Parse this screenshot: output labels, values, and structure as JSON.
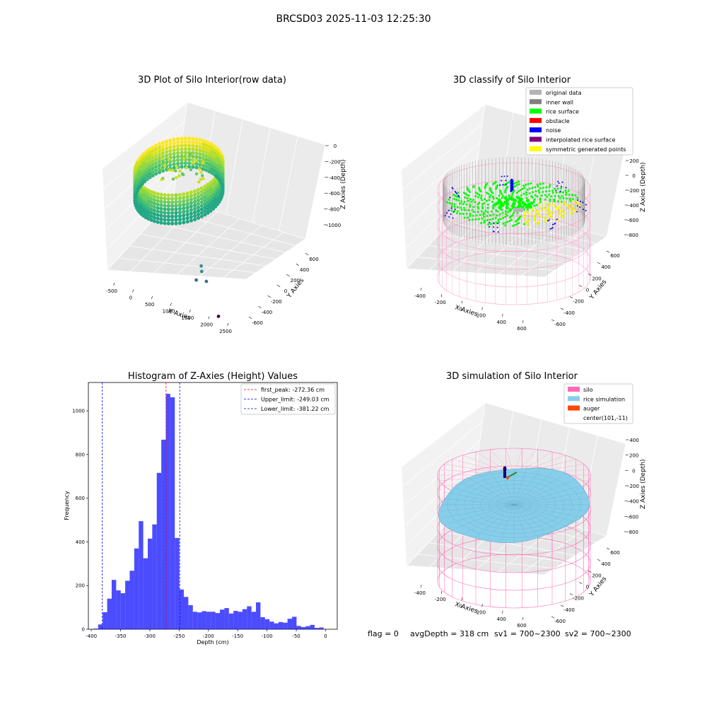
{
  "suptitle": "BRCSD03 2025-11-03 12:25:30",
  "footer": {
    "flag": "flag = 0",
    "avg_depth": "avgDepth = 318 cm",
    "sv1": "sv1 = 700~2300",
    "sv2": "sv2 = 700~2300"
  },
  "chart_data": [
    {
      "id": "raw",
      "type": "scatter",
      "title": "3D Plot of Silo Interior(row data)",
      "xlabel": "X Axies",
      "ylabel": "Y Axies",
      "zlabel": "Z Axies (Depth)",
      "xticks": [
        "-500",
        "0",
        "500",
        "1000",
        "1500",
        "2000",
        "2500"
      ],
      "yticks": [
        "-600",
        "-400",
        "-200",
        "0",
        "200",
        "400",
        "600"
      ],
      "zticks": [
        "0",
        "-200",
        "-400",
        "-600",
        "-800",
        "-1000"
      ],
      "colormap": "viridis",
      "outlier_points": [
        {
          "x": 1000,
          "y": 150,
          "z": -1000
        },
        {
          "x": 1100,
          "y": 60,
          "z": -1000
        },
        {
          "x": 1150,
          "y": -120,
          "z": -1000
        },
        {
          "x": 1350,
          "y": -80,
          "z": -1000
        },
        {
          "x": 2150,
          "y": -600,
          "z": -1000
        }
      ]
    },
    {
      "id": "classify",
      "type": "scatter",
      "title": "3D classify of Silo Interior",
      "xlabel": "X Axies",
      "ylabel": "Y Axies",
      "zlabel": "Z Axies (Depth)",
      "xticks": [
        "-400",
        "-200",
        "0",
        "200",
        "400",
        "600"
      ],
      "yticks": [
        "-600",
        "-400",
        "-200",
        "0",
        "200",
        "400",
        "600"
      ],
      "zticks": [
        "200",
        "0",
        "-200",
        "-400",
        "-600",
        "-800"
      ],
      "legend": [
        {
          "label": "original data",
          "color": "#b4b4b4"
        },
        {
          "label": "inner wall",
          "color": "#808080"
        },
        {
          "label": "rice surface",
          "color": "#00ff00"
        },
        {
          "label": "obstacle",
          "color": "#ff0000"
        },
        {
          "label": "noise",
          "color": "#0000ff"
        },
        {
          "label": "interpolated rice surface",
          "color": "#800080"
        },
        {
          "label": "symmetric generated points",
          "color": "#ffff00"
        }
      ],
      "legend_loc": "upper right"
    },
    {
      "id": "histogram",
      "type": "bar",
      "title": "Histogram of Z-Axies (Height) Values",
      "xlabel": "Depth (cm)",
      "ylabel": "Frequency",
      "xlim": [
        -405,
        20
      ],
      "ylim": [
        0,
        1130
      ],
      "xticks": [
        -400,
        -350,
        -300,
        -250,
        -200,
        -150,
        -100,
        -50,
        0
      ],
      "yticks": [
        0,
        200,
        400,
        600,
        800,
        1000
      ],
      "bin_width": 7.7,
      "bin_start": -396,
      "values": [
        3,
        22,
        78,
        140,
        226,
        178,
        165,
        222,
        268,
        370,
        495,
        325,
        415,
        480,
        716,
        868,
        1078,
        1062,
        418,
        182,
        148,
        110,
        80,
        77,
        83,
        80,
        80,
        74,
        90,
        97,
        72,
        84,
        80,
        92,
        105,
        80,
        123,
        55,
        46,
        35,
        27,
        33,
        30,
        48,
        57,
        15,
        10,
        14,
        20,
        6,
        8
      ],
      "color": "#0000ff",
      "lines": [
        {
          "label": "first_peak: -272.36 cm",
          "value": -272.36,
          "color": "#ff0000"
        },
        {
          "label": "Upper_limit: -249.03 cm",
          "value": -249.03,
          "color": "#0000ff"
        },
        {
          "label": "Lower_limit: -381.22 cm",
          "value": -381.22,
          "color": "#0000ff"
        }
      ],
      "legend_loc": "upper right"
    },
    {
      "id": "simulation",
      "type": "area",
      "title": "3D simulation of Silo Interior",
      "xlabel": "X Axies",
      "ylabel": "Y Axies",
      "zlabel": "Z Axies (Depth)",
      "xticks": [
        "-400",
        "-200",
        "0",
        "200",
        "400",
        "600"
      ],
      "yticks": [
        "-600",
        "-400",
        "-200",
        "0",
        "200",
        "400",
        "600"
      ],
      "zticks": [
        "400",
        "200",
        "0",
        "-200",
        "-400",
        "-600",
        "-800"
      ],
      "legend": [
        {
          "label": "silo",
          "color": "#ff69b4"
        },
        {
          "label": "rice simulation",
          "color": "#87ceeb"
        },
        {
          "label": "auger",
          "color": "#ff4500"
        },
        {
          "label": "center(101,-11)",
          "color": ""
        }
      ],
      "legend_loc": "upper right"
    }
  ]
}
